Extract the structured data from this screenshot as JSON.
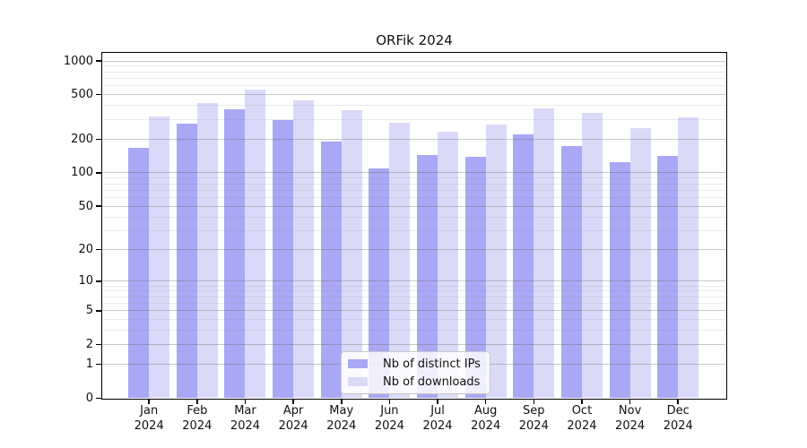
{
  "title": "ORFik 2024",
  "chart_data": {
    "type": "bar",
    "title": "ORFik 2024",
    "categories": [
      "Jan 2024",
      "Feb 2024",
      "Mar 2024",
      "Apr 2024",
      "May 2024",
      "Jun 2024",
      "Jul 2024",
      "Aug 2024",
      "Sep 2024",
      "Oct 2024",
      "Nov 2024",
      "Dec 2024"
    ],
    "series": [
      {
        "name": "Nb of distinct IPs",
        "color": "#a8a8f5",
        "values": [
          167,
          275,
          373,
          298,
          190,
          110,
          144,
          139,
          223,
          175,
          125,
          142
        ]
      },
      {
        "name": "Nb of downloads",
        "color": "#dadaf8",
        "values": [
          320,
          422,
          556,
          449,
          361,
          282,
          234,
          269,
          376,
          346,
          254,
          314
        ]
      }
    ],
    "xlabel": "",
    "ylabel": "",
    "yscale": "log1p",
    "ylim": [
      0,
      1175
    ],
    "y_ticks": [
      0,
      1,
      2,
      5,
      10,
      20,
      50,
      100,
      200,
      500,
      1000
    ],
    "y_tick_labels": [
      "0",
      "1",
      "2",
      "5",
      "10",
      "20",
      "50",
      "100",
      "200",
      "500",
      "1000"
    ],
    "y_minor_ticks": [
      3,
      4,
      6,
      7,
      8,
      9,
      30,
      40,
      60,
      70,
      80,
      90,
      300,
      400,
      600,
      700,
      800,
      900
    ],
    "grid": "horizontal major and minor lines",
    "legend_position": "lower center inside plot"
  },
  "legend": {
    "items": [
      {
        "label": "Nb of distinct IPs",
        "swatch_color": "#a8a8f5"
      },
      {
        "label": "Nb of downloads",
        "swatch_color": "#dadaf8"
      }
    ]
  },
  "colors": {
    "background": "#ffffff",
    "bar_ips": "#a8a8f5",
    "bar_downloads": "#dadaf8",
    "grid_major": "rgba(100,100,100,0.35)",
    "grid_minor": "rgba(128,128,128,0.16)",
    "axis": "#000000",
    "legend_border": "#c8c8c8",
    "legend_bg": "rgba(255,255,255,0.82)"
  }
}
